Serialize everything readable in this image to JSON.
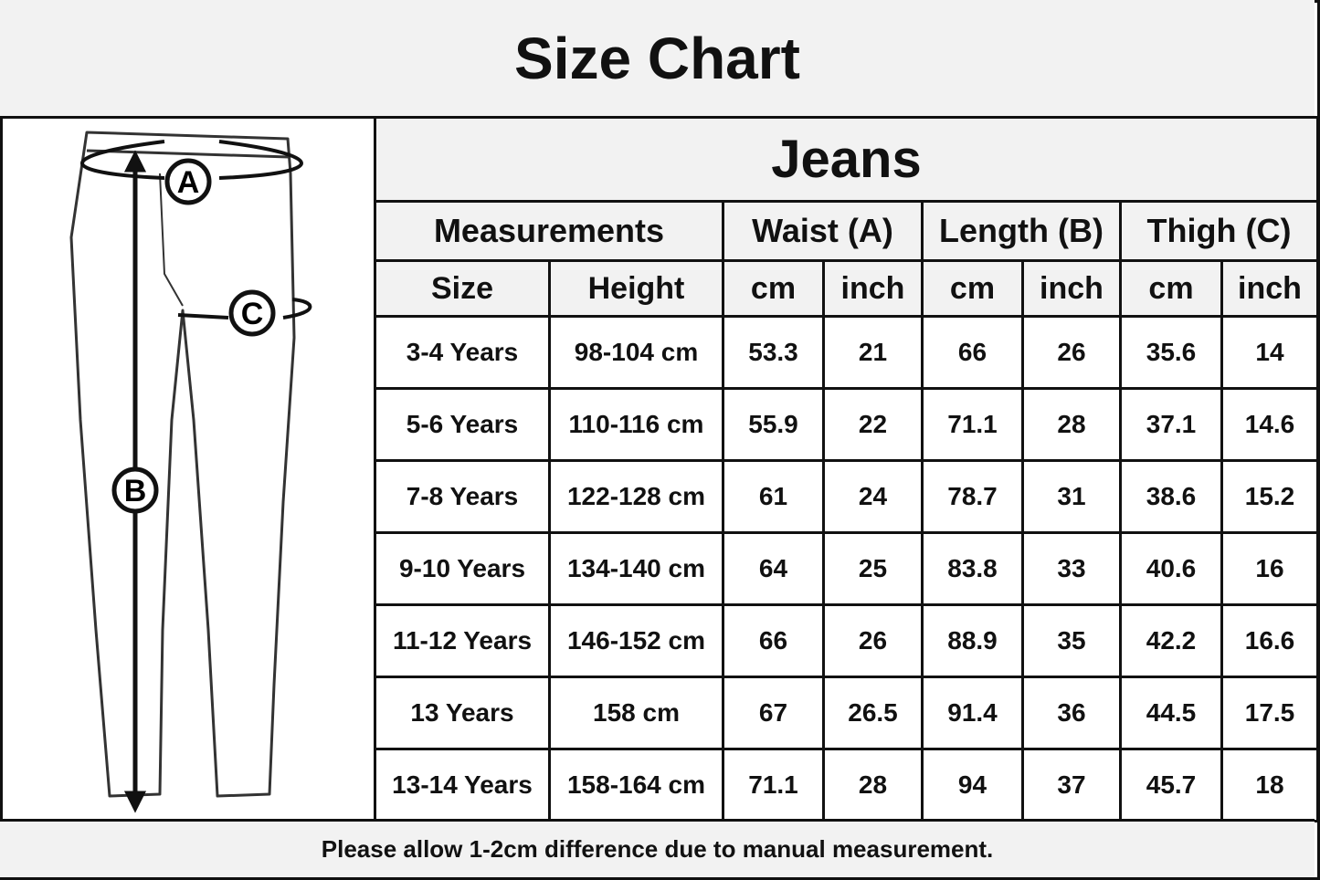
{
  "header": {
    "title": "Size Chart"
  },
  "diagram": {
    "labels": [
      "A",
      "B",
      "C"
    ]
  },
  "table": {
    "title": "Jeans",
    "groups": [
      "Measurements",
      "Waist (A)",
      "Length (B)",
      "Thigh (C)"
    ],
    "columns": [
      "Size",
      "Height",
      "cm",
      "inch",
      "cm",
      "inch",
      "cm",
      "inch"
    ],
    "rows": [
      [
        "3-4 Years",
        "98-104 cm",
        53.3,
        21,
        66,
        26,
        35.6,
        14
      ],
      [
        "5-6 Years",
        "110-116 cm",
        55.9,
        22,
        71.1,
        28,
        37.1,
        14.6
      ],
      [
        "7-8 Years",
        "122-128 cm",
        61,
        24,
        78.7,
        31,
        38.6,
        15.2
      ],
      [
        "9-10 Years",
        "134-140 cm",
        64,
        25,
        83.8,
        33,
        40.6,
        16
      ],
      [
        "11-12 Years",
        "146-152 cm",
        66,
        26,
        88.9,
        35,
        42.2,
        16.6
      ],
      [
        "13 Years",
        "158 cm",
        67,
        26.5,
        91.4,
        36,
        44.5,
        17.5
      ],
      [
        "13-14 Years",
        "158-164 cm",
        71.1,
        28,
        94,
        37,
        45.7,
        18
      ]
    ]
  },
  "footer": {
    "note": "Please allow 1-2cm difference due to manual measurement."
  }
}
